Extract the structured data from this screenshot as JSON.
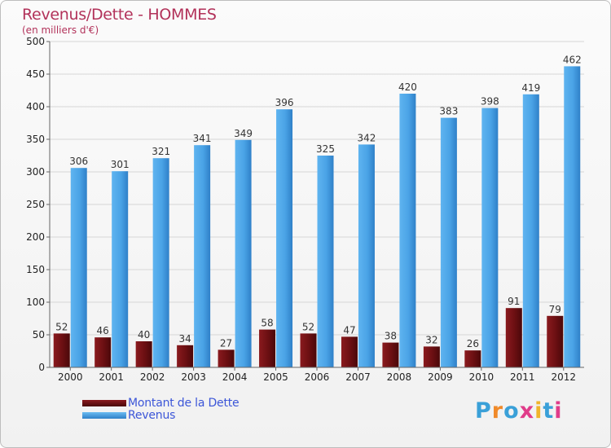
{
  "header": {
    "title": "Revenus/Dette - HOMMES",
    "subtitle": "(en milliers d'€)"
  },
  "legend": {
    "items": [
      {
        "label": "Montant de la Dette",
        "color": "#6b0f12"
      },
      {
        "label": "Revenus",
        "color": "#4aa3e6"
      }
    ]
  },
  "logo": {
    "text": "Proxiti",
    "colors": [
      "#3aa0d8",
      "#f08a2a",
      "#3aa0d8",
      "#e03c8a",
      "#f0b42a",
      "#3aa0d8",
      "#e03c8a"
    ]
  },
  "chart_data": {
    "type": "bar",
    "title": "Revenus/Dette - HOMMES",
    "subtitle": "(en milliers d'€)",
    "categories": [
      "2000",
      "2001",
      "2002",
      "2003",
      "2004",
      "2005",
      "2006",
      "2007",
      "2008",
      "2009",
      "2010",
      "2011",
      "2012"
    ],
    "series": [
      {
        "name": "Montant de la Dette",
        "color": "#6b0f12",
        "values": [
          52,
          46,
          40,
          34,
          27,
          58,
          52,
          47,
          38,
          32,
          26,
          91,
          79
        ]
      },
      {
        "name": "Revenus",
        "color": "#4aa3e6",
        "values": [
          306,
          301,
          321,
          341,
          349,
          396,
          325,
          342,
          420,
          383,
          398,
          419,
          462
        ]
      }
    ],
    "ylim": [
      0,
      500
    ],
    "yticks": [
      0,
      50,
      100,
      150,
      200,
      250,
      300,
      350,
      400,
      450,
      500
    ],
    "grid": true,
    "legend_position": "bottom-left"
  }
}
